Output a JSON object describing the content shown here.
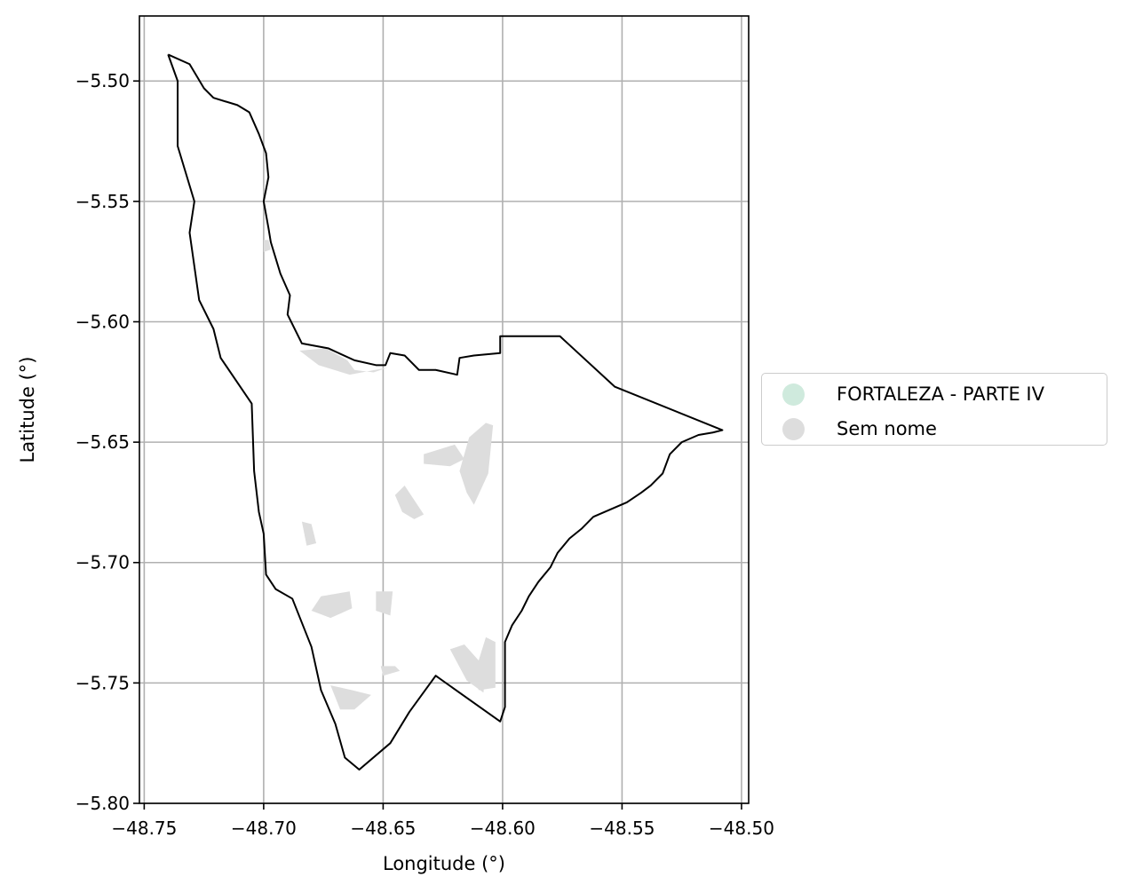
{
  "chart_data": {
    "type": "map",
    "xlabel": "Longitude (°)",
    "ylabel": "Latitude (°)",
    "xlim": [
      -48.752,
      -48.497
    ],
    "ylim": [
      -5.8,
      -5.473
    ],
    "xticks": [
      -48.75,
      -48.7,
      -48.65,
      -48.6,
      -48.55,
      -48.5
    ],
    "xtick_labels": [
      "−48.75",
      "−48.70",
      "−48.65",
      "−48.60",
      "−48.55",
      "−48.50"
    ],
    "yticks": [
      -5.5,
      -5.55,
      -5.6,
      -5.65,
      -5.7,
      -5.75,
      -5.8
    ],
    "ytick_labels": [
      "−5.50",
      "−5.55",
      "−5.60",
      "−5.65",
      "−5.70",
      "−5.75",
      "−5.80"
    ],
    "grid": true,
    "legend_position": "right",
    "legend": [
      {
        "label": "FORTALEZA - PARTE IV",
        "color": "#cfeadd"
      },
      {
        "label": "Sem nome",
        "color": "#dddddd"
      }
    ],
    "boundary": {
      "color": "#000000",
      "coords": [
        [
          -48.74,
          -5.489
        ],
        [
          -48.731,
          -5.493
        ],
        [
          -48.725,
          -5.503
        ],
        [
          -48.721,
          -5.507
        ],
        [
          -48.711,
          -5.51
        ],
        [
          -48.706,
          -5.513
        ],
        [
          -48.702,
          -5.522
        ],
        [
          -48.699,
          -5.53
        ],
        [
          -48.698,
          -5.54
        ],
        [
          -48.7,
          -5.55
        ],
        [
          -48.698,
          -5.561
        ],
        [
          -48.697,
          -5.567
        ],
        [
          -48.693,
          -5.58
        ],
        [
          -48.689,
          -5.589
        ],
        [
          -48.69,
          -5.597
        ],
        [
          -48.684,
          -5.609
        ],
        [
          -48.673,
          -5.611
        ],
        [
          -48.662,
          -5.616
        ],
        [
          -48.653,
          -5.618
        ],
        [
          -48.649,
          -5.618
        ],
        [
          -48.647,
          -5.613
        ],
        [
          -48.641,
          -5.614
        ],
        [
          -48.635,
          -5.62
        ],
        [
          -48.628,
          -5.62
        ],
        [
          -48.619,
          -5.622
        ],
        [
          -48.618,
          -5.615
        ],
        [
          -48.612,
          -5.614
        ],
        [
          -48.601,
          -5.613
        ],
        [
          -48.601,
          -5.606
        ],
        [
          -48.576,
          -5.606
        ],
        [
          -48.553,
          -5.627
        ],
        [
          -48.508,
          -5.645
        ],
        [
          -48.512,
          -5.646
        ],
        [
          -48.518,
          -5.647
        ],
        [
          -48.525,
          -5.65
        ],
        [
          -48.53,
          -5.655
        ],
        [
          -48.533,
          -5.663
        ],
        [
          -48.538,
          -5.668
        ],
        [
          -48.542,
          -5.671
        ],
        [
          -48.548,
          -5.675
        ],
        [
          -48.555,
          -5.678
        ],
        [
          -48.562,
          -5.681
        ],
        [
          -48.567,
          -5.686
        ],
        [
          -48.572,
          -5.69
        ],
        [
          -48.577,
          -5.696
        ],
        [
          -48.58,
          -5.702
        ],
        [
          -48.585,
          -5.708
        ],
        [
          -48.589,
          -5.714
        ],
        [
          -48.592,
          -5.72
        ],
        [
          -48.596,
          -5.726
        ],
        [
          -48.599,
          -5.733
        ],
        [
          -48.599,
          -5.741
        ],
        [
          -48.599,
          -5.75
        ],
        [
          -48.599,
          -5.76
        ],
        [
          -48.601,
          -5.766
        ],
        [
          -48.628,
          -5.747
        ],
        [
          -48.639,
          -5.762
        ],
        [
          -48.647,
          -5.775
        ],
        [
          -48.66,
          -5.786
        ],
        [
          -48.666,
          -5.781
        ],
        [
          -48.67,
          -5.767
        ],
        [
          -48.676,
          -5.753
        ],
        [
          -48.68,
          -5.735
        ],
        [
          -48.688,
          -5.715
        ],
        [
          -48.695,
          -5.711
        ],
        [
          -48.699,
          -5.705
        ],
        [
          -48.7,
          -5.688
        ],
        [
          -48.702,
          -5.679
        ],
        [
          -48.704,
          -5.662
        ],
        [
          -48.705,
          -5.634
        ],
        [
          -48.718,
          -5.615
        ],
        [
          -48.721,
          -5.603
        ],
        [
          -48.727,
          -5.591
        ],
        [
          -48.731,
          -5.563
        ],
        [
          -48.729,
          -5.55
        ],
        [
          -48.736,
          -5.527
        ],
        [
          -48.736,
          -5.5
        ],
        [
          -48.74,
          -5.489
        ]
      ]
    },
    "filled_areas": [
      {
        "category": "Sem nome",
        "coords": [
          [
            -48.633,
            -5.655
          ],
          [
            -48.62,
            -5.651
          ],
          [
            -48.616,
            -5.657
          ],
          [
            -48.622,
            -5.66
          ],
          [
            -48.633,
            -5.659
          ]
        ]
      },
      {
        "category": "Sem nome",
        "coords": [
          [
            -48.614,
            -5.648
          ],
          [
            -48.607,
            -5.642
          ],
          [
            -48.604,
            -5.643
          ],
          [
            -48.606,
            -5.663
          ],
          [
            -48.612,
            -5.676
          ],
          [
            -48.615,
            -5.671
          ],
          [
            -48.618,
            -5.662
          ]
        ]
      },
      {
        "category": "Sem nome",
        "coords": [
          [
            -48.645,
            -5.672
          ],
          [
            -48.641,
            -5.668
          ],
          [
            -48.633,
            -5.68
          ],
          [
            -48.637,
            -5.682
          ],
          [
            -48.642,
            -5.679
          ]
        ]
      },
      {
        "category": "Sem nome",
        "coords": [
          [
            -48.68,
            -5.72
          ],
          [
            -48.676,
            -5.714
          ],
          [
            -48.664,
            -5.712
          ],
          [
            -48.663,
            -5.719
          ],
          [
            -48.672,
            -5.723
          ]
        ]
      },
      {
        "category": "Sem nome",
        "coords": [
          [
            -48.653,
            -5.712
          ],
          [
            -48.646,
            -5.712
          ],
          [
            -48.647,
            -5.722
          ],
          [
            -48.653,
            -5.72
          ]
        ]
      },
      {
        "category": "Sem nome",
        "coords": [
          [
            -48.622,
            -5.736
          ],
          [
            -48.616,
            -5.734
          ],
          [
            -48.607,
            -5.744
          ],
          [
            -48.608,
            -5.754
          ],
          [
            -48.615,
            -5.749
          ]
        ]
      },
      {
        "category": "Sem nome",
        "coords": [
          [
            -48.607,
            -5.731
          ],
          [
            -48.603,
            -5.733
          ],
          [
            -48.603,
            -5.752
          ],
          [
            -48.61,
            -5.753
          ],
          [
            -48.612,
            -5.747
          ]
        ]
      },
      {
        "category": "Sem nome",
        "coords": [
          [
            -48.672,
            -5.751
          ],
          [
            -48.663,
            -5.753
          ],
          [
            -48.655,
            -5.755
          ],
          [
            -48.662,
            -5.761
          ],
          [
            -48.668,
            -5.761
          ],
          [
            -48.67,
            -5.756
          ]
        ]
      },
      {
        "category": "Sem nome",
        "coords": [
          [
            -48.685,
            -5.612
          ],
          [
            -48.674,
            -5.611
          ],
          [
            -48.665,
            -5.616
          ],
          [
            -48.662,
            -5.62
          ],
          [
            -48.654,
            -5.621
          ],
          [
            -48.648,
            -5.619
          ],
          [
            -48.664,
            -5.622
          ],
          [
            -48.677,
            -5.618
          ]
        ]
      },
      {
        "category": "Sem nome",
        "coords": [
          [
            -48.684,
            -5.683
          ],
          [
            -48.68,
            -5.684
          ],
          [
            -48.678,
            -5.692
          ],
          [
            -48.682,
            -5.693
          ]
        ]
      },
      {
        "category": "Sem nome",
        "coords": [
          [
            -48.651,
            -5.743
          ],
          [
            -48.645,
            -5.743
          ],
          [
            -48.643,
            -5.745
          ],
          [
            -48.65,
            -5.747
          ]
        ]
      },
      {
        "category": "Sem nome",
        "coords": [
          [
            -48.7,
            -5.566
          ],
          [
            -48.698,
            -5.566
          ],
          [
            -48.697,
            -5.57
          ],
          [
            -48.7,
            -5.571
          ]
        ]
      }
    ]
  }
}
